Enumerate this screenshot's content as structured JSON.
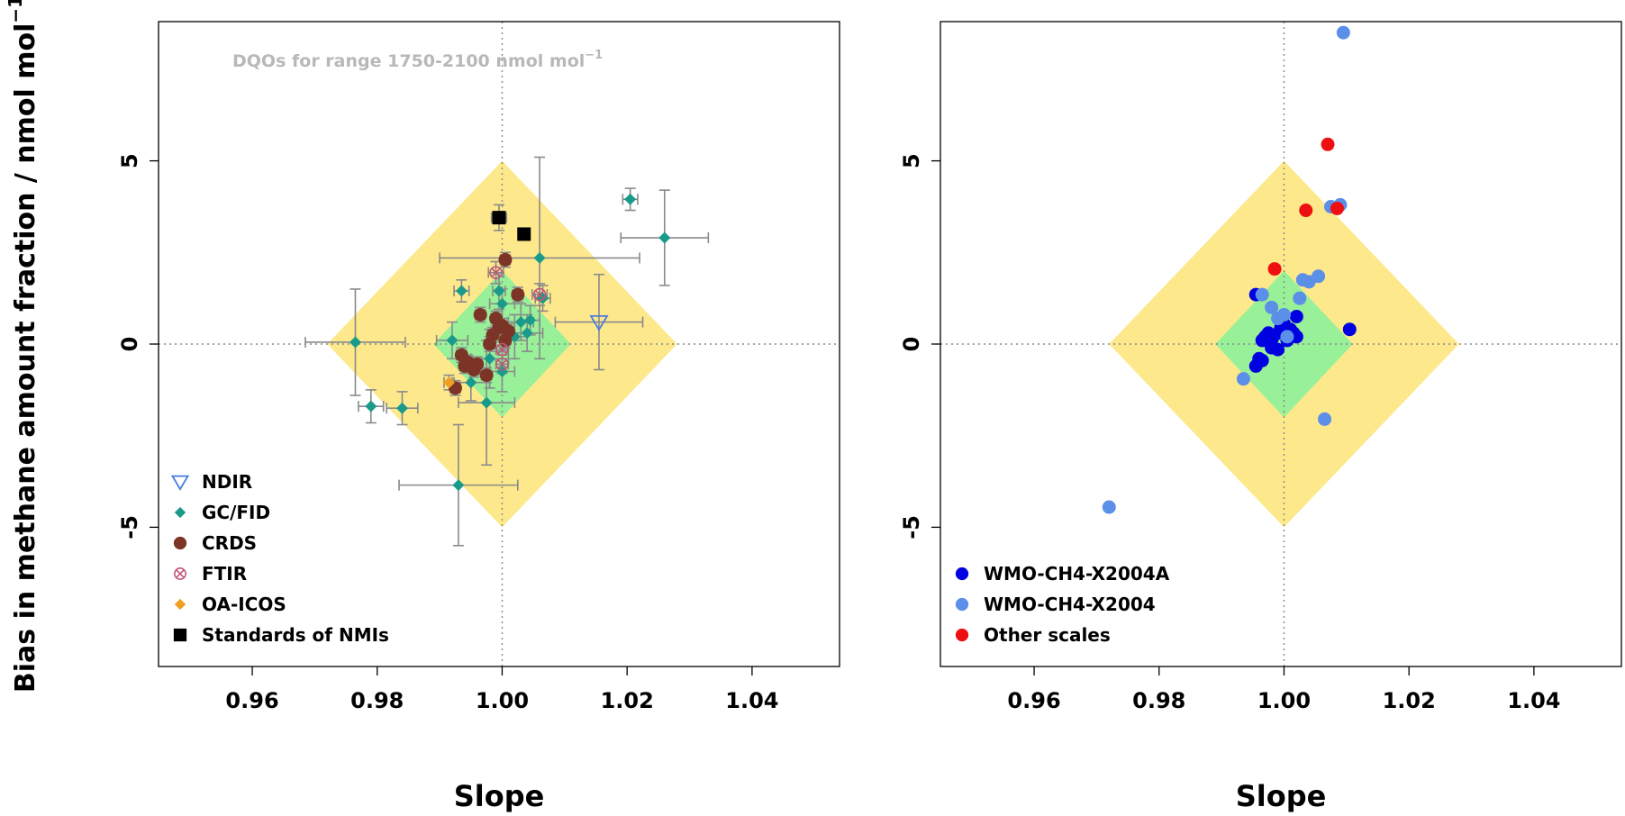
{
  "chart_data": [
    {
      "type": "scatter",
      "panel": "left",
      "xlim": [
        0.945,
        1.054
      ],
      "ylim": [
        -8.8,
        8.8
      ],
      "xticks": [
        0.96,
        0.98,
        1.0,
        1.02,
        1.04
      ],
      "xtick_labels": [
        "0.96",
        "0.98",
        "1.00",
        "1.02",
        "1.04"
      ],
      "yticks": [
        5,
        0,
        -5
      ],
      "ytick_labels": [
        "5",
        "0",
        "-5"
      ],
      "xlabel": "Slope",
      "ylabel": "Bias in methane amount fraction / nmol mol",
      "ylabel_sup": "−1",
      "annotation": "DQOs for range 1750-2100 nmol mol",
      "annotation_sup": "−1",
      "reference_lines": {
        "x": 1.0,
        "y": 0
      },
      "regions": [
        {
          "name": "outer DQO",
          "color": "#fde98c",
          "center": [
            1.0,
            0
          ],
          "x_half_width": 0.028,
          "y_half_height": 5
        },
        {
          "name": "inner DQO",
          "color": "#98f098",
          "center": [
            1.0,
            0
          ],
          "x_half_width": 0.011,
          "y_half_height": 2
        }
      ],
      "legend_position": "bottom-left",
      "series": [
        {
          "name": "NDIR",
          "marker": "triangle-down-open",
          "color": "#4a7de0",
          "points": [
            {
              "x": 1.0155,
              "y": 0.6,
              "xerr": 0.007,
              "yerr": 1.3
            }
          ]
        },
        {
          "name": "GC/FID",
          "marker": "diamond",
          "color": "#1a9a8a",
          "points": [
            {
              "x": 0.9765,
              "y": 0.05,
              "xerr": 0.008,
              "yerr": 1.45
            },
            {
              "x": 0.979,
              "y": -1.7,
              "xerr": 0.002,
              "yerr": 0.45
            },
            {
              "x": 0.984,
              "y": -1.75,
              "xerr": 0.0025,
              "yerr": 0.45
            },
            {
              "x": 0.992,
              "y": 0.1,
              "xerr": 0.0025,
              "yerr": 0.5
            },
            {
              "x": 0.9935,
              "y": 1.45,
              "xerr": 0.0012,
              "yerr": 0.3
            },
            {
              "x": 0.993,
              "y": -3.85,
              "xerr": 0.0095,
              "yerr": 1.65
            },
            {
              "x": 0.995,
              "y": -1.05,
              "xerr": 0.003,
              "yerr": 0.5
            },
            {
              "x": 0.9975,
              "y": -1.6,
              "xerr": 0.0045,
              "yerr": 1.7
            },
            {
              "x": 0.998,
              "y": -0.4,
              "xerr": 0.003,
              "yerr": 0.8
            },
            {
              "x": 0.9995,
              "y": 1.45,
              "xerr": 0.001,
              "yerr": 0.5
            },
            {
              "x": 1.0,
              "y": 1.1,
              "xerr": 0.002,
              "yerr": 0.4
            },
            {
              "x": 1.0,
              "y": -0.75,
              "xerr": 0.002,
              "yerr": 0.55
            },
            {
              "x": 1.002,
              "y": 0.2,
              "xerr": 0.002,
              "yerr": 0.6
            },
            {
              "x": 1.003,
              "y": 0.6,
              "xerr": 0.002,
              "yerr": 0.5
            },
            {
              "x": 1.004,
              "y": 0.3,
              "xerr": 0.0025,
              "yerr": 0.5
            },
            {
              "x": 1.0045,
              "y": 0.65,
              "xerr": 0.0015,
              "yerr": 0.4
            },
            {
              "x": 1.006,
              "y": 2.35,
              "xerr": 0.016,
              "yerr": 2.75
            },
            {
              "x": 1.0065,
              "y": 1.25,
              "xerr": 0.0012,
              "yerr": 0.35
            },
            {
              "x": 1.0205,
              "y": 3.95,
              "xerr": 0.0012,
              "yerr": 0.3
            },
            {
              "x": 1.026,
              "y": 2.9,
              "xerr": 0.007,
              "yerr": 1.3
            }
          ]
        },
        {
          "name": "CRDS",
          "marker": "circle",
          "color": "#7b3426",
          "points": [
            {
              "x": 0.9925,
              "y": -1.2,
              "xerr": 0.0008,
              "yerr": 0.2
            },
            {
              "x": 0.9935,
              "y": -0.3,
              "xerr": 0.0008,
              "yerr": 0.2
            },
            {
              "x": 0.994,
              "y": -0.6,
              "xerr": 0.0008,
              "yerr": 0.2
            },
            {
              "x": 0.9945,
              "y": -0.5,
              "xerr": 0.0008,
              "yerr": 0.2
            },
            {
              "x": 0.9955,
              "y": -0.7,
              "xerr": 0.0008,
              "yerr": 0.2
            },
            {
              "x": 0.996,
              "y": -0.55,
              "xerr": 0.0008,
              "yerr": 0.2
            },
            {
              "x": 0.9965,
              "y": 0.8,
              "xerr": 0.0008,
              "yerr": 0.2
            },
            {
              "x": 0.9975,
              "y": -0.85,
              "xerr": 0.0008,
              "yerr": 0.2
            },
            {
              "x": 0.998,
              "y": 0.0,
              "xerr": 0.0008,
              "yerr": 0.2
            },
            {
              "x": 0.9985,
              "y": 0.25,
              "xerr": 0.0008,
              "yerr": 0.2
            },
            {
              "x": 0.999,
              "y": 0.7,
              "xerr": 0.0008,
              "yerr": 0.2
            },
            {
              "x": 0.9995,
              "y": 0.45,
              "xerr": 0.0008,
              "yerr": 0.2
            },
            {
              "x": 1.0,
              "y": 0.5,
              "xerr": 0.0008,
              "yerr": 0.2
            },
            {
              "x": 1.0005,
              "y": 0.1,
              "xerr": 0.0008,
              "yerr": 0.2
            },
            {
              "x": 1.001,
              "y": 0.35,
              "xerr": 0.0008,
              "yerr": 0.2
            },
            {
              "x": 1.0005,
              "y": 2.3,
              "xerr": 0.0008,
              "yerr": 0.2
            },
            {
              "x": 1.0025,
              "y": 1.35,
              "xerr": 0.0008,
              "yerr": 0.2
            }
          ]
        },
        {
          "name": "FTIR",
          "marker": "circle-x",
          "color": "#c0567a",
          "points": [
            {
              "x": 0.999,
              "y": 1.95,
              "xerr": 0.0012,
              "yerr": 0.3
            },
            {
              "x": 1.006,
              "y": 1.35,
              "xerr": 0.0012,
              "yerr": 0.3
            },
            {
              "x": 1.0,
              "y": -0.15,
              "xerr": 0.001,
              "yerr": 0.25
            },
            {
              "x": 1.0,
              "y": -0.55,
              "xerr": 0.001,
              "yerr": 0.25
            }
          ]
        },
        {
          "name": "OA-ICOS",
          "marker": "diamond",
          "color": "#f0a020",
          "points": [
            {
              "x": 0.9915,
              "y": -1.05,
              "xerr": 0.0008,
              "yerr": 0.2
            }
          ]
        },
        {
          "name": "Standards of NMIs",
          "marker": "square",
          "color": "#000000",
          "points": [
            {
              "x": 0.9995,
              "y": 3.45,
              "xerr": 0.0012,
              "yerr": 0.35
            },
            {
              "x": 1.0035,
              "y": 3.0,
              "xerr": 0.0005,
              "yerr": 0.15
            }
          ]
        }
      ]
    },
    {
      "type": "scatter",
      "panel": "right",
      "xlim": [
        0.945,
        1.054
      ],
      "ylim": [
        -8.8,
        8.8
      ],
      "xticks": [
        0.96,
        0.98,
        1.0,
        1.02,
        1.04
      ],
      "xtick_labels": [
        "0.96",
        "0.98",
        "1.00",
        "1.02",
        "1.04"
      ],
      "yticks": [
        5,
        0,
        -5
      ],
      "ytick_labels": [
        "5",
        "0",
        "-5"
      ],
      "xlabel": "Slope",
      "reference_lines": {
        "x": 1.0,
        "y": 0
      },
      "regions": [
        {
          "name": "outer DQO",
          "color": "#fde98c",
          "center": [
            1.0,
            0
          ],
          "x_half_width": 0.028,
          "y_half_height": 5
        },
        {
          "name": "inner DQO",
          "color": "#98f098",
          "center": [
            1.0,
            0
          ],
          "x_half_width": 0.011,
          "y_half_height": 2
        }
      ],
      "legend_position": "bottom-left",
      "series": [
        {
          "name": "WMO-CH4-X2004A",
          "marker": "circle",
          "color": "#0000e0",
          "points": [
            {
              "x": 0.9955,
              "y": 1.35
            },
            {
              "x": 0.9955,
              "y": -0.6
            },
            {
              "x": 0.996,
              "y": -0.4
            },
            {
              "x": 0.9965,
              "y": -0.45
            },
            {
              "x": 0.9965,
              "y": 0.1
            },
            {
              "x": 0.997,
              "y": 0.2
            },
            {
              "x": 0.9975,
              "y": 0.3
            },
            {
              "x": 0.998,
              "y": -0.1
            },
            {
              "x": 0.998,
              "y": 0.1
            },
            {
              "x": 0.9985,
              "y": 0.25
            },
            {
              "x": 0.999,
              "y": -0.15
            },
            {
              "x": 0.9995,
              "y": 0.45
            },
            {
              "x": 1.0,
              "y": 0.55
            },
            {
              "x": 1.0005,
              "y": 0.1
            },
            {
              "x": 1.001,
              "y": 0.4
            },
            {
              "x": 1.0015,
              "y": 0.3
            },
            {
              "x": 1.002,
              "y": 0.75
            },
            {
              "x": 1.002,
              "y": 0.2
            },
            {
              "x": 1.0105,
              "y": 0.4
            }
          ]
        },
        {
          "name": "WMO-CH4-X2004",
          "marker": "circle",
          "color": "#5b8fe8",
          "points": [
            {
              "x": 0.972,
              "y": -4.45
            },
            {
              "x": 0.9935,
              "y": -0.95
            },
            {
              "x": 0.9965,
              "y": 1.35
            },
            {
              "x": 0.998,
              "y": 1.0
            },
            {
              "x": 0.999,
              "y": 0.7
            },
            {
              "x": 1.0,
              "y": 0.8
            },
            {
              "x": 1.0005,
              "y": 0.2
            },
            {
              "x": 1.0025,
              "y": 1.25
            },
            {
              "x": 1.003,
              "y": 1.75
            },
            {
              "x": 1.004,
              "y": 1.7
            },
            {
              "x": 1.0055,
              "y": 1.85
            },
            {
              "x": 1.0065,
              "y": -2.05
            },
            {
              "x": 1.0075,
              "y": 3.75
            },
            {
              "x": 1.009,
              "y": 3.8
            },
            {
              "x": 1.0095,
              "y": 8.5
            }
          ]
        },
        {
          "name": "Other scales",
          "marker": "circle",
          "color": "#ee1010",
          "points": [
            {
              "x": 0.9985,
              "y": 2.05
            },
            {
              "x": 1.0035,
              "y": 3.65
            },
            {
              "x": 1.007,
              "y": 5.45
            },
            {
              "x": 1.0085,
              "y": 3.7
            }
          ]
        }
      ]
    }
  ]
}
